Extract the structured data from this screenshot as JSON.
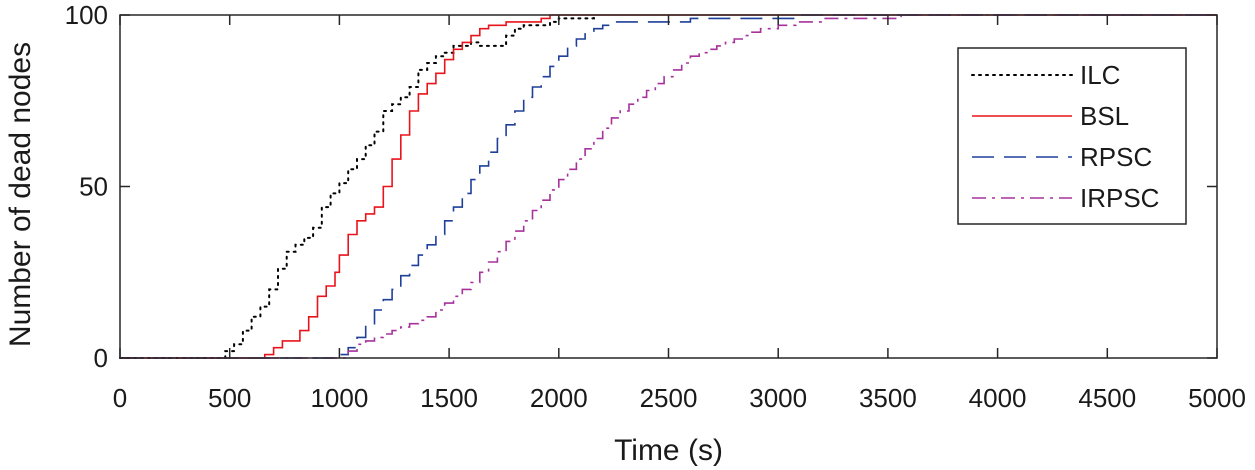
{
  "chart_data": {
    "type": "line",
    "title": "",
    "xlabel": "Time (s)",
    "ylabel": "Number of dead nodes",
    "xlim": [
      0,
      5000
    ],
    "ylim": [
      0,
      100
    ],
    "xticks": [
      "0",
      "500",
      "1000",
      "1500",
      "2000",
      "2500",
      "3000",
      "3500",
      "4000",
      "4500",
      "5000"
    ],
    "yticks": [
      "0",
      "50",
      "100"
    ],
    "grid": false,
    "legend_position": "top-right",
    "series": [
      {
        "name": "ILC",
        "color": "#000000",
        "line_style": "dotted",
        "points": [
          [
            0,
            0
          ],
          [
            440,
            0
          ],
          [
            480,
            2
          ],
          [
            520,
            4
          ],
          [
            560,
            8
          ],
          [
            600,
            12
          ],
          [
            640,
            15
          ],
          [
            680,
            20
          ],
          [
            720,
            26
          ],
          [
            760,
            31
          ],
          [
            800,
            33
          ],
          [
            840,
            35
          ],
          [
            880,
            38
          ],
          [
            920,
            44
          ],
          [
            960,
            48
          ],
          [
            1000,
            51
          ],
          [
            1040,
            55
          ],
          [
            1080,
            58
          ],
          [
            1120,
            62
          ],
          [
            1160,
            66
          ],
          [
            1200,
            72
          ],
          [
            1240,
            74
          ],
          [
            1280,
            76
          ],
          [
            1320,
            79
          ],
          [
            1360,
            84
          ],
          [
            1400,
            86
          ],
          [
            1440,
            88
          ],
          [
            1480,
            89
          ],
          [
            1520,
            91
          ],
          [
            1560,
            91
          ],
          [
            1600,
            92
          ],
          [
            1640,
            91
          ],
          [
            1680,
            91
          ],
          [
            1720,
            91
          ],
          [
            1760,
            94
          ],
          [
            1800,
            96
          ],
          [
            1840,
            97
          ],
          [
            1880,
            97
          ],
          [
            1920,
            97
          ],
          [
            1960,
            98
          ],
          [
            2000,
            99
          ],
          [
            2040,
            99
          ],
          [
            2080,
            99
          ],
          [
            2120,
            99
          ],
          [
            2160,
            100
          ]
        ]
      },
      {
        "name": "BSL",
        "color": "#e8141c",
        "line_style": "solid",
        "points": [
          [
            0,
            0
          ],
          [
            640,
            0
          ],
          [
            660,
            1
          ],
          [
            700,
            3
          ],
          [
            740,
            5
          ],
          [
            780,
            5
          ],
          [
            820,
            8
          ],
          [
            860,
            12
          ],
          [
            900,
            18
          ],
          [
            940,
            21
          ],
          [
            980,
            25
          ],
          [
            1000,
            30
          ],
          [
            1040,
            36
          ],
          [
            1080,
            40
          ],
          [
            1120,
            42
          ],
          [
            1160,
            44
          ],
          [
            1200,
            50
          ],
          [
            1240,
            58
          ],
          [
            1280,
            65
          ],
          [
            1320,
            72
          ],
          [
            1360,
            77
          ],
          [
            1400,
            80
          ],
          [
            1440,
            83
          ],
          [
            1480,
            87
          ],
          [
            1520,
            90
          ],
          [
            1560,
            92
          ],
          [
            1600,
            94
          ],
          [
            1640,
            96
          ],
          [
            1680,
            97
          ],
          [
            1720,
            97
          ],
          [
            1760,
            98
          ],
          [
            1800,
            98
          ],
          [
            1840,
            98
          ],
          [
            1880,
            98
          ],
          [
            1920,
            99
          ],
          [
            1960,
            100
          ],
          [
            5000,
            100
          ]
        ]
      },
      {
        "name": "RPSC",
        "color": "#1f3f99",
        "line_style": "dashed",
        "points": [
          [
            0,
            0
          ],
          [
            980,
            0
          ],
          [
            1000,
            1
          ],
          [
            1040,
            3
          ],
          [
            1080,
            6
          ],
          [
            1120,
            10
          ],
          [
            1160,
            14
          ],
          [
            1200,
            17
          ],
          [
            1240,
            20
          ],
          [
            1280,
            24
          ],
          [
            1320,
            27
          ],
          [
            1360,
            30
          ],
          [
            1400,
            33
          ],
          [
            1440,
            36
          ],
          [
            1480,
            40
          ],
          [
            1520,
            44
          ],
          [
            1560,
            48
          ],
          [
            1600,
            52
          ],
          [
            1640,
            56
          ],
          [
            1680,
            60
          ],
          [
            1720,
            64
          ],
          [
            1760,
            68
          ],
          [
            1800,
            72
          ],
          [
            1840,
            76
          ],
          [
            1880,
            79
          ],
          [
            1920,
            82
          ],
          [
            1960,
            85
          ],
          [
            2000,
            88
          ],
          [
            2040,
            91
          ],
          [
            2080,
            93
          ],
          [
            2120,
            95
          ],
          [
            2160,
            96
          ],
          [
            2200,
            97
          ],
          [
            2240,
            98
          ],
          [
            2280,
            98
          ],
          [
            2320,
            98
          ],
          [
            2360,
            98
          ],
          [
            2400,
            98
          ],
          [
            2440,
            98
          ],
          [
            2480,
            98
          ],
          [
            2520,
            98
          ],
          [
            2560,
            98
          ],
          [
            2600,
            99
          ],
          [
            2640,
            99
          ],
          [
            2680,
            99
          ],
          [
            2720,
            99
          ],
          [
            2760,
            99
          ],
          [
            2800,
            99
          ],
          [
            2840,
            99
          ],
          [
            2880,
            99
          ],
          [
            2920,
            99
          ],
          [
            2960,
            99
          ],
          [
            3000,
            99
          ],
          [
            3040,
            99
          ],
          [
            3080,
            100
          ],
          [
            5000,
            100
          ]
        ]
      },
      {
        "name": "IRPSC",
        "color": "#a6329c",
        "line_style": "dashdot",
        "points": [
          [
            0,
            0
          ],
          [
            1000,
            0
          ],
          [
            1040,
            2
          ],
          [
            1080,
            4
          ],
          [
            1120,
            5
          ],
          [
            1160,
            6
          ],
          [
            1200,
            7
          ],
          [
            1240,
            8
          ],
          [
            1280,
            9
          ],
          [
            1320,
            10
          ],
          [
            1360,
            11
          ],
          [
            1400,
            12
          ],
          [
            1440,
            14
          ],
          [
            1480,
            16
          ],
          [
            1520,
            18
          ],
          [
            1560,
            20
          ],
          [
            1600,
            22
          ],
          [
            1640,
            25
          ],
          [
            1680,
            28
          ],
          [
            1720,
            31
          ],
          [
            1760,
            34
          ],
          [
            1800,
            37
          ],
          [
            1840,
            40
          ],
          [
            1880,
            43
          ],
          [
            1920,
            46
          ],
          [
            1960,
            49
          ],
          [
            2000,
            52
          ],
          [
            2040,
            55
          ],
          [
            2080,
            58
          ],
          [
            2120,
            61
          ],
          [
            2160,
            64
          ],
          [
            2200,
            67
          ],
          [
            2240,
            70
          ],
          [
            2280,
            72
          ],
          [
            2320,
            74
          ],
          [
            2360,
            76
          ],
          [
            2400,
            78
          ],
          [
            2440,
            80
          ],
          [
            2480,
            82
          ],
          [
            2520,
            84
          ],
          [
            2560,
            86
          ],
          [
            2600,
            88
          ],
          [
            2640,
            89
          ],
          [
            2680,
            90
          ],
          [
            2720,
            91
          ],
          [
            2760,
            92
          ],
          [
            2800,
            93
          ],
          [
            2840,
            94
          ],
          [
            2880,
            95
          ],
          [
            2920,
            96
          ],
          [
            2960,
            96
          ],
          [
            3000,
            97
          ],
          [
            3040,
            97
          ],
          [
            3080,
            98
          ],
          [
            3120,
            98
          ],
          [
            3160,
            98
          ],
          [
            3200,
            99
          ],
          [
            3240,
            99
          ],
          [
            3280,
            99
          ],
          [
            3320,
            99
          ],
          [
            3360,
            99
          ],
          [
            3400,
            99
          ],
          [
            3440,
            99
          ],
          [
            3480,
            99
          ],
          [
            3520,
            99
          ],
          [
            3560,
            100
          ],
          [
            5000,
            100
          ]
        ]
      }
    ]
  }
}
